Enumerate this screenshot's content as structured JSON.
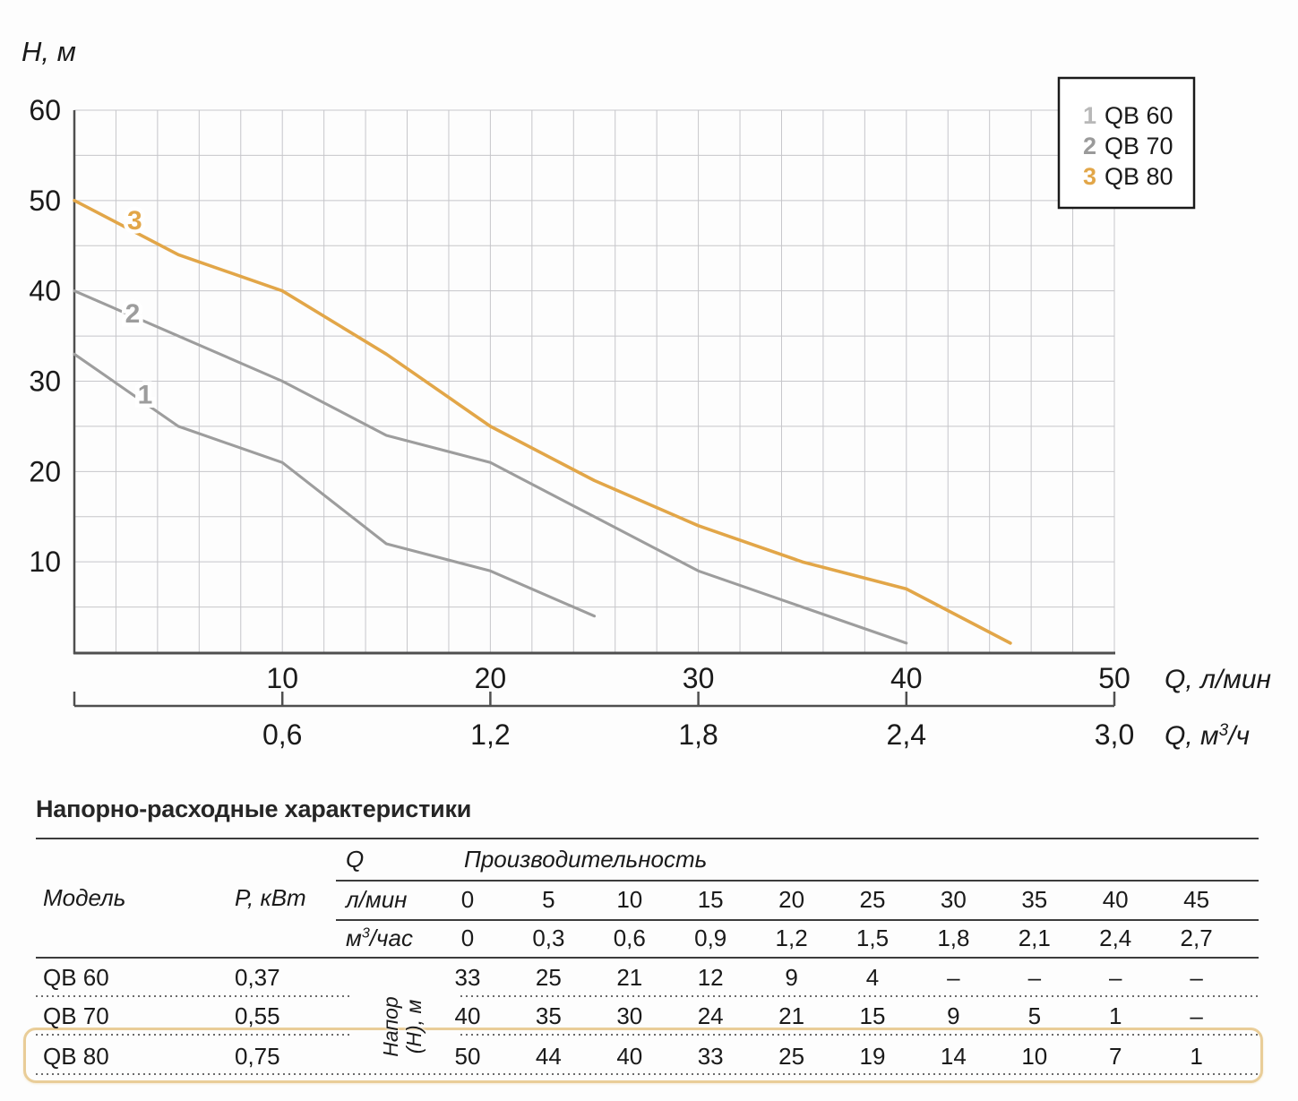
{
  "chart": {
    "head_axis_label": "H, м",
    "flow_axis_label_lmin": "Q, л/мин",
    "flow_axis_label_m3h": "Q, м³/ч",
    "y_tick_labels": [
      "10",
      "20",
      "30",
      "40",
      "50",
      "60"
    ],
    "x_tick_labels_lmin": [
      "10",
      "20",
      "30",
      "40",
      "50"
    ],
    "x_tick_labels_m3h": [
      "0,6",
      "1,2",
      "1,8",
      "2,4",
      "3,0"
    ],
    "grid_color": "#C6C6CA",
    "axis_color": "#4F4F4F",
    "legend": [
      {
        "marker": "1",
        "label": "QB 60",
        "marker_color": "#B8B8B8"
      },
      {
        "marker": "2",
        "label": "QB 70",
        "marker_color": "#9A9A9A"
      },
      {
        "marker": "3",
        "label": "QB 80",
        "marker_color": "#E2A648"
      }
    ]
  },
  "chart_data": {
    "type": "line",
    "xlabel_primary": "Q, л/мин",
    "xlabel_secondary": "Q, м³/ч",
    "ylabel": "H, м",
    "xlim": [
      0,
      50
    ],
    "ylim": [
      0,
      60
    ],
    "x_minor_step": 2,
    "y_minor_step": 5,
    "grid": true,
    "legend_position": "top-right",
    "series": [
      {
        "name": "QB 60",
        "curve_label": "1",
        "color": "#9D9D9D",
        "x": [
          0,
          5,
          10,
          15,
          20,
          25
        ],
        "y": [
          33,
          25,
          21,
          12,
          9,
          4
        ],
        "label_q": 3.4,
        "label_h": 27.5
      },
      {
        "name": "QB 70",
        "curve_label": "2",
        "color": "#9D9D9D",
        "x": [
          0,
          5,
          10,
          15,
          20,
          25,
          30,
          35,
          40
        ],
        "y": [
          40,
          35,
          30,
          24,
          21,
          15,
          9,
          5,
          1
        ],
        "label_q": 2.8,
        "label_h": 36.5
      },
      {
        "name": "QB 80",
        "curve_label": "3",
        "color": "#E2A648",
        "x": [
          0,
          5,
          10,
          15,
          20,
          25,
          30,
          35,
          40,
          45
        ],
        "y": [
          50,
          44,
          40,
          33,
          25,
          19,
          14,
          10,
          7,
          1
        ],
        "label_q": 2.9,
        "label_h": 46.8
      }
    ]
  },
  "table": {
    "title": "Напорно-расходные характеристики",
    "col_model": "Модель",
    "col_power": "P, кВт",
    "q_label": "Q",
    "performance_label": "Производительность",
    "unit_rows": [
      {
        "label": "л/мин",
        "sup": "",
        "values": [
          "0",
          "5",
          "10",
          "15",
          "20",
          "25",
          "30",
          "35",
          "40",
          "45"
        ]
      },
      {
        "label": "м³/час",
        "sup": "3",
        "values": [
          "0",
          "0,3",
          "0,6",
          "0,9",
          "1,2",
          "1,5",
          "1,8",
          "2,1",
          "2,4",
          "2,7"
        ]
      }
    ],
    "head_rotated_label": "Напор\n(H), м",
    "rows": [
      {
        "model": "QB 60",
        "power": "0,37",
        "highlighted": false,
        "values": [
          "33",
          "25",
          "21",
          "12",
          "9",
          "4",
          "–",
          "–",
          "–",
          "–"
        ]
      },
      {
        "model": "QB 70",
        "power": "0,55",
        "highlighted": false,
        "values": [
          "40",
          "35",
          "30",
          "24",
          "21",
          "15",
          "9",
          "5",
          "1",
          "–"
        ]
      },
      {
        "model": "QB 80",
        "power": "0,75",
        "highlighted": true,
        "values": [
          "50",
          "44",
          "40",
          "33",
          "25",
          "19",
          "14",
          "10",
          "7",
          "1"
        ]
      }
    ],
    "highlight_color": "#E9CD98"
  }
}
